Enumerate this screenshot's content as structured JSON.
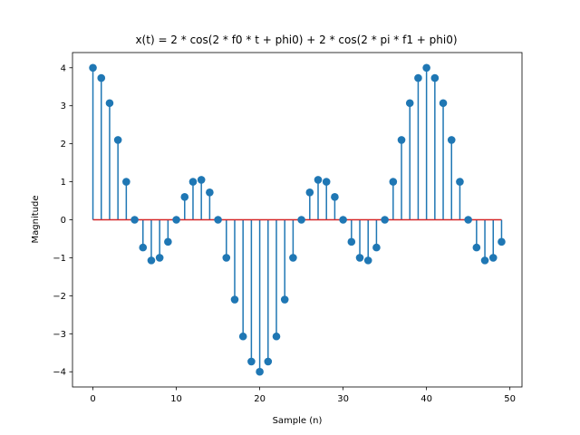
{
  "chart_data": {
    "type": "stem",
    "title": "x(t) = 2 * cos(2 * f0 * t + phi0) + 2 * cos(2 * pi * f1 + phi0)",
    "xlabel": "Sample (n)",
    "ylabel": "Magnitude",
    "xlim": [
      -2.45,
      51.45
    ],
    "ylim": [
      -4.4,
      4.4
    ],
    "xticks": [
      0,
      10,
      20,
      30,
      40,
      50
    ],
    "yticks": [
      -4,
      -3,
      -2,
      -1,
      0,
      1,
      2,
      3,
      4
    ],
    "grid": false,
    "colors": {
      "stem": "#1f77b4",
      "baseline": "#d62728"
    },
    "x": [
      0,
      1,
      2,
      3,
      4,
      5,
      6,
      7,
      8,
      9,
      10,
      11,
      12,
      13,
      14,
      15,
      16,
      17,
      18,
      19,
      20,
      21,
      22,
      23,
      24,
      25,
      26,
      27,
      28,
      29,
      30,
      31,
      32,
      33,
      34,
      35,
      36,
      37,
      38,
      39,
      40,
      41,
      42,
      43,
      44,
      45,
      46,
      47,
      48,
      49
    ],
    "values": [
      4.0,
      3.73,
      3.07,
      2.1,
      1.0,
      0.0,
      -0.73,
      -1.07,
      -1.0,
      -0.58,
      0.0,
      0.6,
      1.0,
      1.05,
      0.72,
      0.0,
      -1.0,
      -2.1,
      -3.07,
      -3.73,
      -4.0,
      -3.73,
      -3.07,
      -2.1,
      -1.0,
      0.0,
      0.72,
      1.05,
      1.0,
      0.6,
      0.0,
      -0.58,
      -1.0,
      -1.07,
      -0.73,
      0.0,
      1.0,
      2.1,
      3.07,
      3.73,
      4.0,
      3.73,
      3.07,
      2.1,
      1.0,
      0.0,
      -0.73,
      -1.07,
      -1.0,
      -0.58
    ]
  }
}
